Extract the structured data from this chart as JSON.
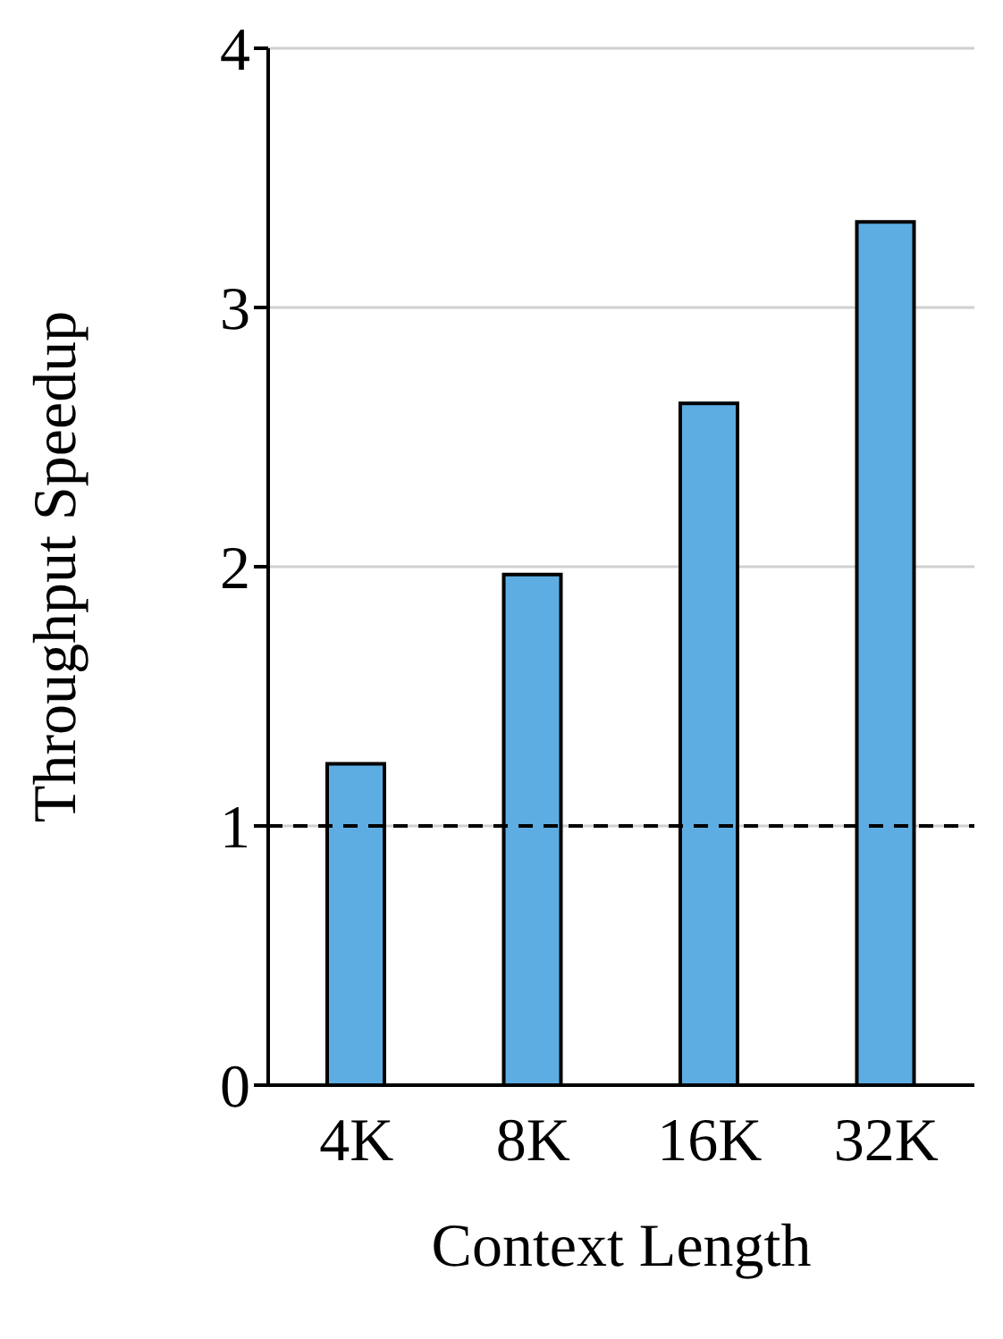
{
  "chart_data": {
    "type": "bar",
    "xlabel": "Context Length",
    "ylabel": "Throughput Speedup",
    "categories": [
      "4K",
      "8K",
      "16K",
      "32K"
    ],
    "values": [
      1.24,
      1.97,
      2.63,
      3.33
    ],
    "color": "#5dade2",
    "ylim": [
      0,
      4
    ],
    "yticks": [
      0,
      1,
      2,
      3,
      4
    ],
    "grid": "y",
    "ref_lines": [
      {
        "axis": "y",
        "value": 1,
        "color": "#000000",
        "line_style": "dashed"
      }
    ]
  }
}
